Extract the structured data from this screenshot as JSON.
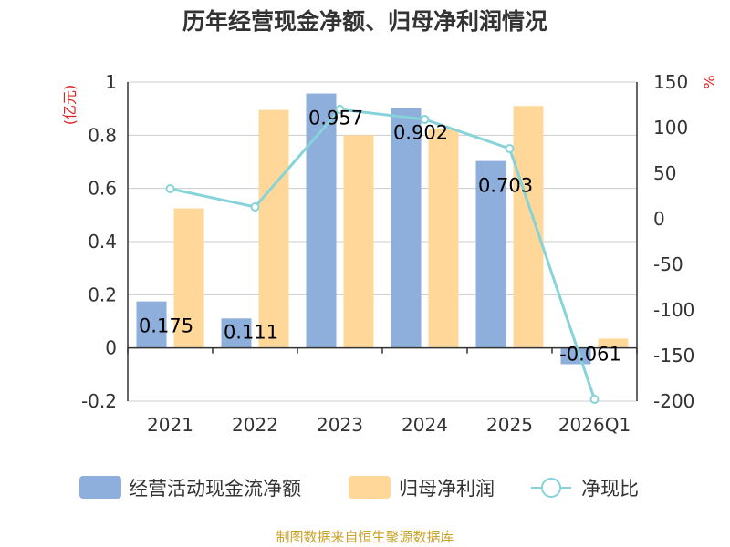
{
  "chart_data": {
    "type": "bar",
    "title": "历年经营现金净额、归母净利润情况",
    "categories": [
      "2021",
      "2022",
      "2023",
      "2024",
      "2025",
      "2026Q1"
    ],
    "series": [
      {
        "name": "经营活动现金流净额",
        "type": "bar",
        "axis": "left",
        "color": "#8eaedb",
        "values": [
          0.175,
          0.111,
          0.957,
          0.902,
          0.703,
          -0.061
        ],
        "labels": [
          "0.175",
          "0.111",
          "0.957",
          "0.902",
          "0.703",
          "-0.061"
        ]
      },
      {
        "name": "归母净利润",
        "type": "bar",
        "axis": "left",
        "color": "#ffd899",
        "values": [
          0.525,
          0.895,
          0.8,
          0.825,
          0.91,
          0.035
        ]
      },
      {
        "name": "净现比",
        "type": "line",
        "axis": "right",
        "color": "#86d3d9",
        "values": [
          33,
          13,
          120,
          109,
          77,
          -198
        ]
      }
    ],
    "left_axis": {
      "unit": "(亿元)",
      "min": -0.2,
      "max": 1,
      "ticks": [
        1,
        0.8,
        0.6,
        0.4,
        0.2,
        0,
        -0.2
      ],
      "tick_labels": [
        "1",
        "0.8",
        "0.6",
        "0.4",
        "0.2",
        "0",
        "-0.2"
      ]
    },
    "right_axis": {
      "unit": "%",
      "min": -200,
      "max": 150,
      "ticks": [
        150,
        100,
        50,
        0,
        -50,
        -100,
        -150,
        -200
      ],
      "tick_labels": [
        "150",
        "100",
        "50",
        "0",
        "-50",
        "-100",
        "-150",
        "-200"
      ]
    },
    "legend": [
      "经营活动现金流净额",
      "归母净利润",
      "净现比"
    ],
    "legend_position": "bottom",
    "grid": true
  },
  "source": "制图数据来自恒生聚源数据库"
}
